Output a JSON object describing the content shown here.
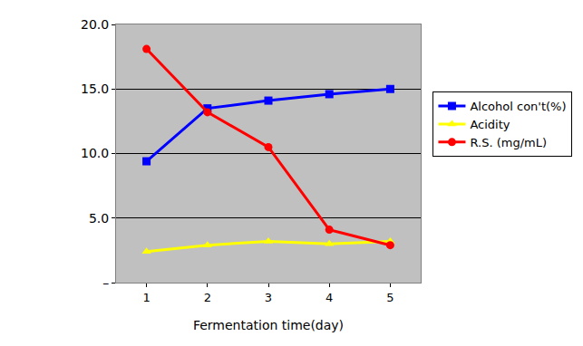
{
  "chart_data": {
    "type": "line",
    "x_label": "Fermentation time(day)",
    "categories": [
      "1",
      "2",
      "3",
      "4",
      "5"
    ],
    "series": [
      {
        "name": "Alcohol con't(%)",
        "color": "#0000ff",
        "marker": "square",
        "values": [
          9.4,
          13.5,
          14.1,
          14.6,
          15.0
        ]
      },
      {
        "name": "Acidity",
        "color": "#ffff00",
        "marker": "triangle-up",
        "values": [
          2.4,
          2.9,
          3.2,
          3.0,
          3.2
        ]
      },
      {
        "name": "R.S. (mg/mL)",
        "color": "#ff0000",
        "marker": "circle",
        "values": [
          18.1,
          13.2,
          10.5,
          4.1,
          2.9
        ]
      }
    ],
    "ylim": [
      0,
      20
    ],
    "yticks": [
      {
        "value": 0,
        "label": "–"
      },
      {
        "value": 5,
        "label": "5.0"
      },
      {
        "value": 10,
        "label": "10.0"
      },
      {
        "value": 15,
        "label": "15.0"
      },
      {
        "value": 20,
        "label": "20.0"
      }
    ],
    "grid": true,
    "legend": "right"
  }
}
